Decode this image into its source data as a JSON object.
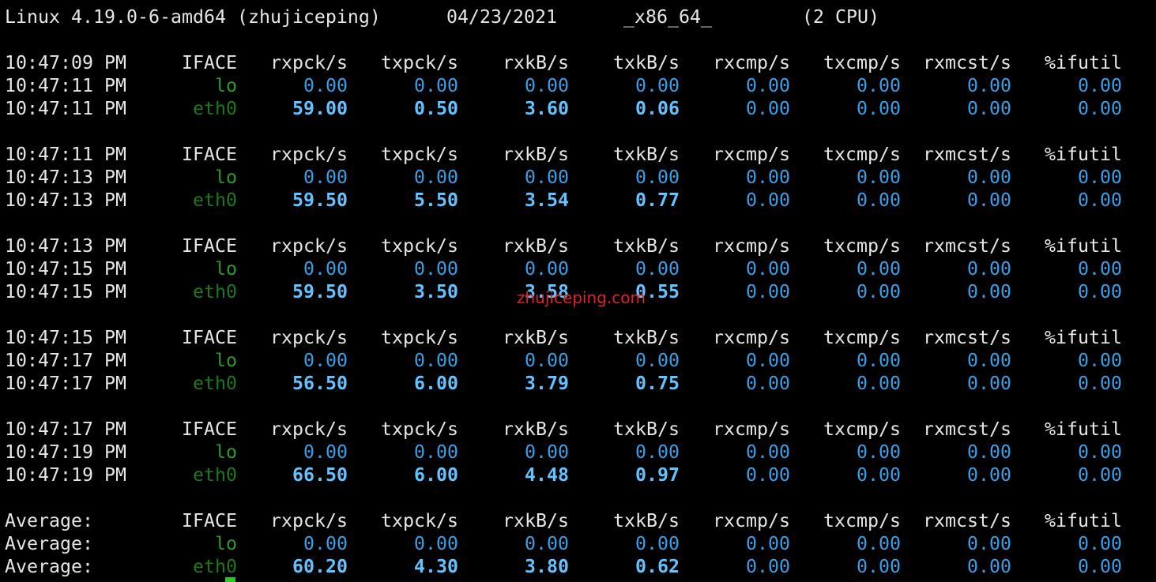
{
  "system_line": {
    "kernel": "Linux 4.19.0-6-amd64 (zhujiceping)",
    "date": "04/23/2021",
    "arch": "_x86_64_",
    "cpus": "(2 CPU)"
  },
  "columns": [
    "IFACE",
    "rxpck/s",
    "txpck/s",
    "rxkB/s",
    "txkB/s",
    "rxcmp/s",
    "txcmp/s",
    "rxmcst/s",
    "%ifutil"
  ],
  "blocks": [
    {
      "header_time": "10:47:09 PM",
      "rows": [
        {
          "time": "10:47:11 PM",
          "iface": "lo",
          "values": [
            "0.00",
            "0.00",
            "0.00",
            "0.00",
            "0.00",
            "0.00",
            "0.00",
            "0.00"
          ]
        },
        {
          "time": "10:47:11 PM",
          "iface": "eth0",
          "values": [
            "59.00",
            "0.50",
            "3.60",
            "0.06",
            "0.00",
            "0.00",
            "0.00",
            "0.00"
          ]
        }
      ]
    },
    {
      "header_time": "10:47:11 PM",
      "rows": [
        {
          "time": "10:47:13 PM",
          "iface": "lo",
          "values": [
            "0.00",
            "0.00",
            "0.00",
            "0.00",
            "0.00",
            "0.00",
            "0.00",
            "0.00"
          ]
        },
        {
          "time": "10:47:13 PM",
          "iface": "eth0",
          "values": [
            "59.50",
            "5.50",
            "3.54",
            "0.77",
            "0.00",
            "0.00",
            "0.00",
            "0.00"
          ]
        }
      ]
    },
    {
      "header_time": "10:47:13 PM",
      "rows": [
        {
          "time": "10:47:15 PM",
          "iface": "lo",
          "values": [
            "0.00",
            "0.00",
            "0.00",
            "0.00",
            "0.00",
            "0.00",
            "0.00",
            "0.00"
          ]
        },
        {
          "time": "10:47:15 PM",
          "iface": "eth0",
          "values": [
            "59.50",
            "3.50",
            "3.58",
            "0.55",
            "0.00",
            "0.00",
            "0.00",
            "0.00"
          ]
        }
      ]
    },
    {
      "header_time": "10:47:15 PM",
      "rows": [
        {
          "time": "10:47:17 PM",
          "iface": "lo",
          "values": [
            "0.00",
            "0.00",
            "0.00",
            "0.00",
            "0.00",
            "0.00",
            "0.00",
            "0.00"
          ]
        },
        {
          "time": "10:47:17 PM",
          "iface": "eth0",
          "values": [
            "56.50",
            "6.00",
            "3.79",
            "0.75",
            "0.00",
            "0.00",
            "0.00",
            "0.00"
          ]
        }
      ]
    },
    {
      "header_time": "10:47:17 PM",
      "rows": [
        {
          "time": "10:47:19 PM",
          "iface": "lo",
          "values": [
            "0.00",
            "0.00",
            "0.00",
            "0.00",
            "0.00",
            "0.00",
            "0.00",
            "0.00"
          ]
        },
        {
          "time": "10:47:19 PM",
          "iface": "eth0",
          "values": [
            "66.50",
            "6.00",
            "4.48",
            "0.97",
            "0.00",
            "0.00",
            "0.00",
            "0.00"
          ]
        }
      ]
    },
    {
      "header_time": "Average:",
      "rows": [
        {
          "time": "Average:",
          "iface": "lo",
          "values": [
            "0.00",
            "0.00",
            "0.00",
            "0.00",
            "0.00",
            "0.00",
            "0.00",
            "0.00"
          ]
        },
        {
          "time": "Average:",
          "iface": "eth0",
          "values": [
            "60.20",
            "4.30",
            "3.80",
            "0.62",
            "0.00",
            "0.00",
            "0.00",
            "0.00"
          ]
        }
      ]
    }
  ],
  "watermark": "zhujiceping.com"
}
